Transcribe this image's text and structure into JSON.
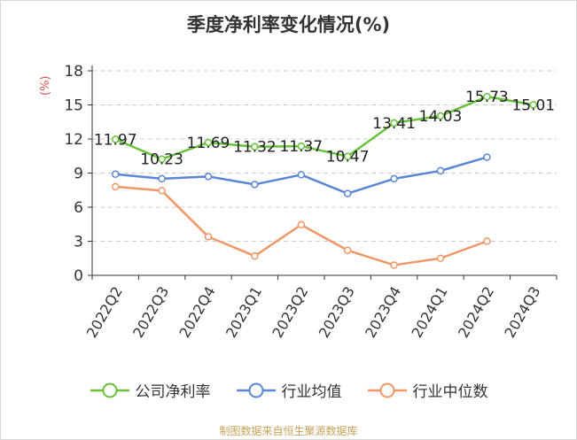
{
  "chart_data": {
    "type": "line",
    "title": "季度净利率变化情况(%)",
    "ylabel": "(%)",
    "xlabel": "",
    "categories": [
      "2022Q2",
      "2022Q3",
      "2022Q4",
      "2023Q1",
      "2023Q2",
      "2023Q3",
      "2023Q4",
      "2024Q1",
      "2024Q2",
      "2024Q3"
    ],
    "yticks": [
      0,
      3,
      6,
      9,
      12,
      15,
      18
    ],
    "ylim": [
      0,
      18
    ],
    "grid": true,
    "legend_position": "bottom",
    "series": [
      {
        "name": "公司净利率",
        "color": "#67c23a",
        "values": [
          11.97,
          10.23,
          11.69,
          11.32,
          11.37,
          10.47,
          13.41,
          14.03,
          15.73,
          15.01
        ],
        "labels": [
          "11.97",
          "10.23",
          "11.69",
          "11.32",
          "11.37",
          "10.47",
          "13.41",
          "14.03",
          "15.73",
          "15.01"
        ]
      },
      {
        "name": "行业均值",
        "color": "#5b86d6",
        "values": [
          8.9,
          8.5,
          8.7,
          8.0,
          8.85,
          7.2,
          8.5,
          9.2,
          10.4,
          null
        ]
      },
      {
        "name": "行业中位数",
        "color": "#f09766",
        "values": [
          7.8,
          7.45,
          3.4,
          1.7,
          4.45,
          2.2,
          0.9,
          1.5,
          3.0,
          null
        ]
      }
    ]
  },
  "source": "制图数据来自恒生聚源数据库"
}
